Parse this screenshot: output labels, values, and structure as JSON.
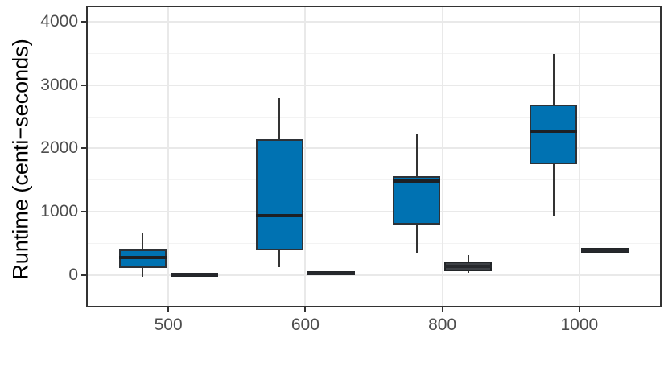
{
  "chart_data": {
    "type": "boxplot",
    "title": "",
    "xlabel": "",
    "ylabel": "Runtime (centi−seconds)",
    "categories": [
      "500",
      "600",
      "800",
      "1000"
    ],
    "yticks": [
      0,
      1000,
      2000,
      3000,
      4000
    ],
    "ytick_labels": [
      "0",
      "1000",
      "2000",
      "3000",
      "4000"
    ],
    "minor_gridlines": [
      500,
      1500,
      2500,
      3500
    ],
    "ylim": [
      -508,
      4254
    ],
    "grid": "on",
    "legend": "none",
    "series": [
      {
        "name": "series-blue",
        "fill": "#0072B2",
        "border": "#2e3237",
        "median_color": "#1d2024",
        "boxes": [
          {
            "category": "500",
            "low": -25,
            "q1": 110,
            "median": 275,
            "q3": 405,
            "high": 670
          },
          {
            "category": "600",
            "low": 130,
            "q1": 390,
            "median": 940,
            "q3": 2150,
            "high": 2790
          },
          {
            "category": "800",
            "low": 360,
            "q1": 800,
            "median": 1490,
            "q3": 1560,
            "high": 2220
          },
          {
            "category": "1000",
            "low": 940,
            "q1": 1750,
            "median": 2270,
            "q3": 2690,
            "high": 3490
          }
        ]
      },
      {
        "name": "series-dark",
        "fill": "#3d4045",
        "border": "#222528",
        "median_color": "#26282c",
        "boxes": [
          {
            "category": "500",
            "low": -25,
            "q1": -20,
            "median": 8,
            "q3": 35,
            "high": 40
          },
          {
            "category": "600",
            "low": 0,
            "q1": 5,
            "median": 30,
            "q3": 60,
            "high": 65
          },
          {
            "category": "800",
            "low": 40,
            "q1": 65,
            "median": 140,
            "q3": 215,
            "high": 320
          },
          {
            "category": "1000",
            "low": 350,
            "q1": 355,
            "median": 395,
            "q3": 430,
            "high": 435
          }
        ]
      }
    ],
    "style": {
      "major_grid_color": "#e9e9e9",
      "minor_grid_color": "#f3f3f3",
      "panel_border_color": "#333333",
      "tick_color": "#333333",
      "tick_label_color": "#4d4d4d",
      "axis_label_color": "#000000",
      "whisker_color": "#333333",
      "panel_background": "#ffffff"
    }
  }
}
